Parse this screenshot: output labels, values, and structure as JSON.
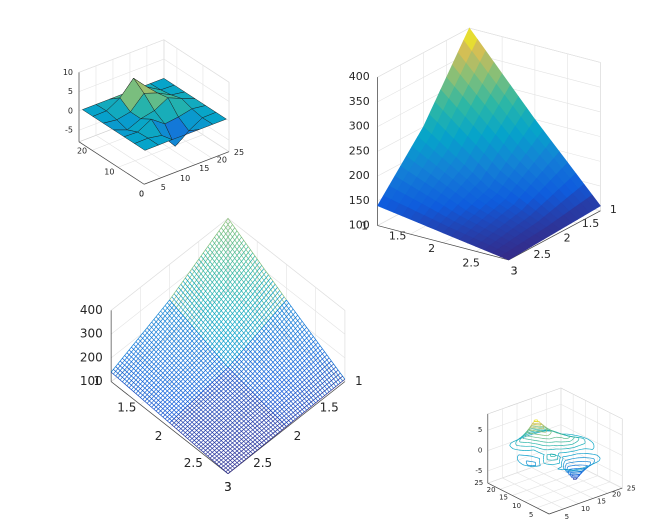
{
  "chart_data": [
    {
      "type": "surface",
      "shading": "faceted",
      "x": [
        1,
        5,
        9,
        13,
        17,
        21,
        25
      ],
      "y": [
        1,
        5,
        9,
        13,
        17,
        21,
        25
      ],
      "z": [
        [
          0,
          0.01,
          0.08,
          0.02,
          0,
          0,
          0
        ],
        [
          0,
          0.05,
          -0.59,
          -4.76,
          -2.1,
          -0.06,
          0
        ],
        [
          0,
          -0.13,
          1.85,
          -0.72,
          -0.27,
          0.5,
          0
        ],
        [
          0,
          -1.33,
          0.21,
          0.98,
          2.94,
          1.41,
          0
        ],
        [
          0,
          -0.48,
          0.23,
          3.69,
          2.43,
          0.58,
          0
        ],
        [
          0,
          0.08,
          2.1,
          5.85,
          2.21,
          0.13,
          0
        ],
        [
          0,
          0,
          0,
          0.03,
          0,
          0,
          0
        ]
      ],
      "xlim": [
        0,
        25
      ],
      "ylim": [
        0,
        25
      ],
      "zlim": [
        -8,
        10
      ],
      "xticks": [
        0,
        5,
        10,
        15,
        20,
        25
      ],
      "yticks": [
        0,
        10,
        20
      ],
      "zticks": [
        -5,
        0,
        5,
        10
      ]
    },
    {
      "type": "surface",
      "shading": "interp",
      "x": [
        1,
        2,
        3
      ],
      "y": [
        1,
        2,
        3
      ],
      "z": [
        [
          400,
          250,
          140
        ],
        [
          250,
          160,
          120
        ],
        [
          110,
          105,
          100
        ]
      ],
      "xlim": [
        1,
        3
      ],
      "ylim": [
        1,
        3
      ],
      "zlim": [
        100,
        400
      ],
      "xticks": [
        1,
        1.5,
        2,
        2.5,
        3
      ],
      "yticks": [
        1,
        1.5,
        2,
        2.5,
        3
      ],
      "zticks": [
        100,
        150,
        200,
        250,
        300,
        350,
        400
      ]
    },
    {
      "type": "mesh",
      "x": [
        1,
        2,
        3
      ],
      "y": [
        1,
        2,
        3
      ],
      "z": [
        [
          400,
          250,
          140
        ],
        [
          250,
          160,
          120
        ],
        [
          110,
          105,
          100
        ]
      ],
      "xlim": [
        1,
        3
      ],
      "ylim": [
        1,
        3
      ],
      "zlim": [
        100,
        400
      ],
      "xticks": [
        1,
        1.5,
        2,
        2.5,
        3
      ],
      "yticks": [
        1,
        1.5,
        2,
        2.5,
        3
      ],
      "zticks": [
        100,
        200,
        300,
        400
      ]
    },
    {
      "type": "contour3",
      "x": [
        1,
        5,
        9,
        13,
        17,
        21,
        25
      ],
      "y": [
        1,
        5,
        9,
        13,
        17,
        21,
        25
      ],
      "z": [
        [
          0,
          0.01,
          0.08,
          0.02,
          0,
          0,
          0
        ],
        [
          0,
          0.05,
          -0.59,
          -4.76,
          -2.1,
          -0.06,
          0
        ],
        [
          0,
          -0.13,
          1.85,
          -0.72,
          -0.27,
          0.5,
          0
        ],
        [
          0,
          -1.33,
          0.21,
          0.98,
          2.94,
          1.41,
          0
        ],
        [
          0,
          -0.48,
          0.23,
          3.69,
          2.43,
          0.58,
          0
        ],
        [
          0,
          0.08,
          2.1,
          5.85,
          2.21,
          0.13,
          0
        ],
        [
          0,
          0,
          0,
          0.03,
          0,
          0,
          0
        ]
      ],
      "xlim": [
        0,
        25
      ],
      "ylim": [
        0,
        25
      ],
      "zlim": [
        -8,
        9
      ],
      "xticks": [
        5,
        10,
        15,
        20,
        25
      ],
      "yticks": [
        5,
        10,
        15,
        20,
        25
      ],
      "zticks": [
        -5,
        0,
        5
      ]
    }
  ]
}
